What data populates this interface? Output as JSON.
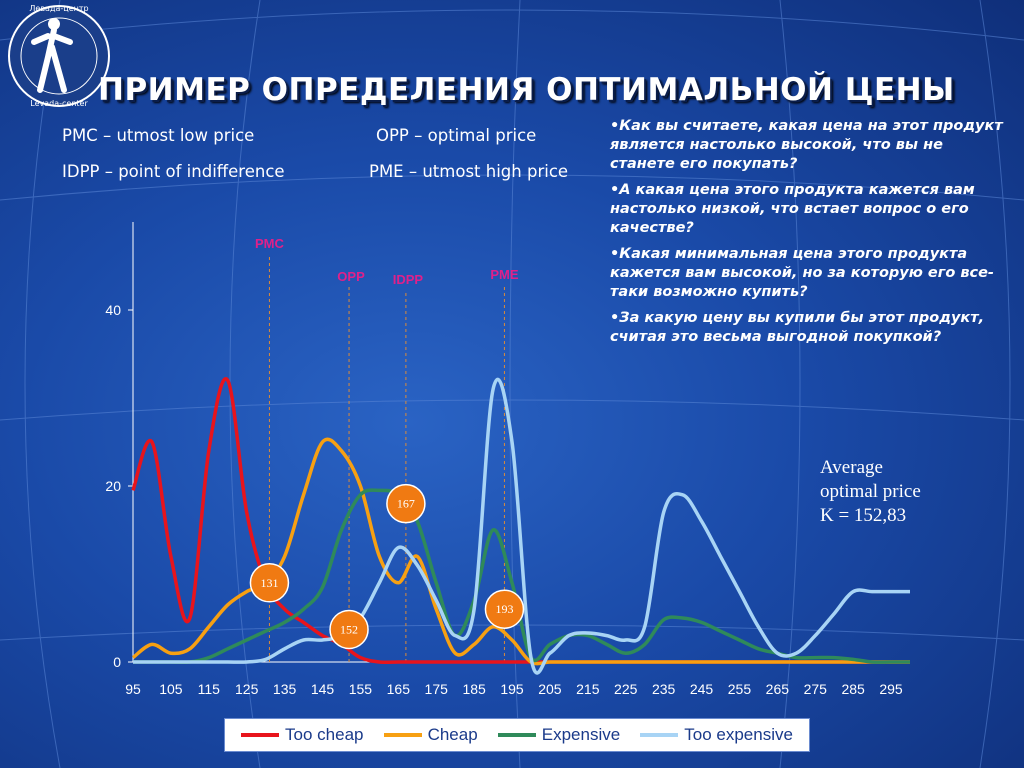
{
  "title": "ПРИМЕР ОПРЕДЕЛЕНИЯ ОПТИМАЛЬНОЙ ЦЕНЫ",
  "logo": {
    "text": "Левада-центр · Levada-center"
  },
  "definitions": {
    "pmc": "PMC – utmost low price",
    "opp": "OPP – optimal price",
    "idpp": "IDPP – point of indifference",
    "pme": "PME – utmost high price"
  },
  "questions": [
    "•Как вы считаете, какая цена на этот продукт является настолько высокой, что вы не станете его покупать?",
    "•А какая цена этого продукта кажется вам настолько низкой, что встает вопрос о его качестве?",
    "•Какая минимальная цена этого продукта кажется вам высокой, но за которую его все-таки возможно купить?",
    "•За какую цену вы купили бы этот продукт, считая это весьма выгодной покупкой?"
  ],
  "average": {
    "line1": "Average",
    "line2": "optimal price",
    "line3": "K = 152,83"
  },
  "chart_data": {
    "type": "line",
    "x": [
      95,
      100,
      105,
      110,
      115,
      120,
      125,
      130,
      135,
      140,
      145,
      150,
      155,
      160,
      165,
      170,
      175,
      180,
      185,
      190,
      195,
      200,
      205,
      210,
      215,
      220,
      225,
      230,
      235,
      240,
      245,
      250,
      255,
      260,
      265,
      270,
      275,
      280,
      285,
      290,
      295,
      300
    ],
    "xticks": [
      95,
      105,
      115,
      125,
      135,
      145,
      155,
      165,
      175,
      185,
      195,
      205,
      215,
      225,
      235,
      245,
      255,
      265,
      275,
      285,
      295
    ],
    "yticks": [
      0,
      20,
      40
    ],
    "ylim": [
      0,
      50
    ],
    "xlim": [
      95,
      300
    ],
    "series": [
      {
        "name": "Too cheap",
        "color": "#e8141c",
        "values": [
          19.5,
          25,
          12,
          5,
          24,
          32,
          17,
          9,
          6,
          4.5,
          3,
          2,
          0.5,
          0,
          0,
          0,
          0,
          0,
          0,
          0,
          0,
          0,
          0,
          0,
          0,
          0,
          0,
          0,
          0,
          0,
          0,
          0,
          0,
          0,
          0,
          0,
          0,
          0,
          0,
          0,
          0,
          0
        ]
      },
      {
        "name": "Cheap",
        "color": "#f7a012",
        "values": [
          0.5,
          2,
          1,
          1.5,
          4,
          6.5,
          8,
          9,
          12,
          19,
          25,
          24,
          20,
          12,
          9,
          12,
          6,
          1,
          2,
          4,
          2.5,
          0,
          0,
          0,
          0,
          0,
          0,
          0,
          0,
          0,
          0,
          0,
          0,
          0,
          0,
          0,
          0,
          0,
          0,
          0,
          0,
          0
        ]
      },
      {
        "name": "Expensive",
        "color": "#2f8a5a",
        "values": [
          0,
          0,
          0,
          0,
          0.5,
          1.5,
          2.5,
          3.5,
          4.5,
          6,
          8.5,
          15,
          19,
          19.5,
          19,
          16,
          9,
          3,
          7,
          15,
          9,
          0.5,
          2,
          3,
          3,
          2,
          1,
          2,
          4.8,
          5,
          4.5,
          3.5,
          2.5,
          1.5,
          1,
          0.5,
          0.5,
          0.5,
          0.3,
          0,
          0,
          0
        ]
      },
      {
        "name": "Too expensive",
        "color": "#a8d4f5",
        "values": [
          0,
          0,
          0,
          0,
          0,
          0,
          0,
          0.3,
          1.5,
          2.5,
          2.5,
          3,
          5,
          9,
          13,
          11,
          7,
          3,
          6,
          31,
          25,
          0.5,
          1,
          3,
          3.3,
          3,
          2.5,
          4,
          17,
          19,
          16,
          12,
          8,
          4,
          1,
          1,
          3,
          5.5,
          8,
          8,
          8,
          8
        ]
      }
    ],
    "markers": [
      {
        "label": "PMC",
        "x": 131
      },
      {
        "label": "OPP",
        "x": 152
      },
      {
        "label": "IDPP",
        "x": 167
      },
      {
        "label": "PME",
        "x": 193
      }
    ],
    "callouts": [
      {
        "label": "131",
        "x": 131,
        "y": 9
      },
      {
        "label": "152",
        "x": 152,
        "y": 3.7
      },
      {
        "label": "167",
        "x": 167,
        "y": 18
      },
      {
        "label": "193",
        "x": 193,
        "y": 6
      }
    ],
    "legend_position": "bottom"
  }
}
